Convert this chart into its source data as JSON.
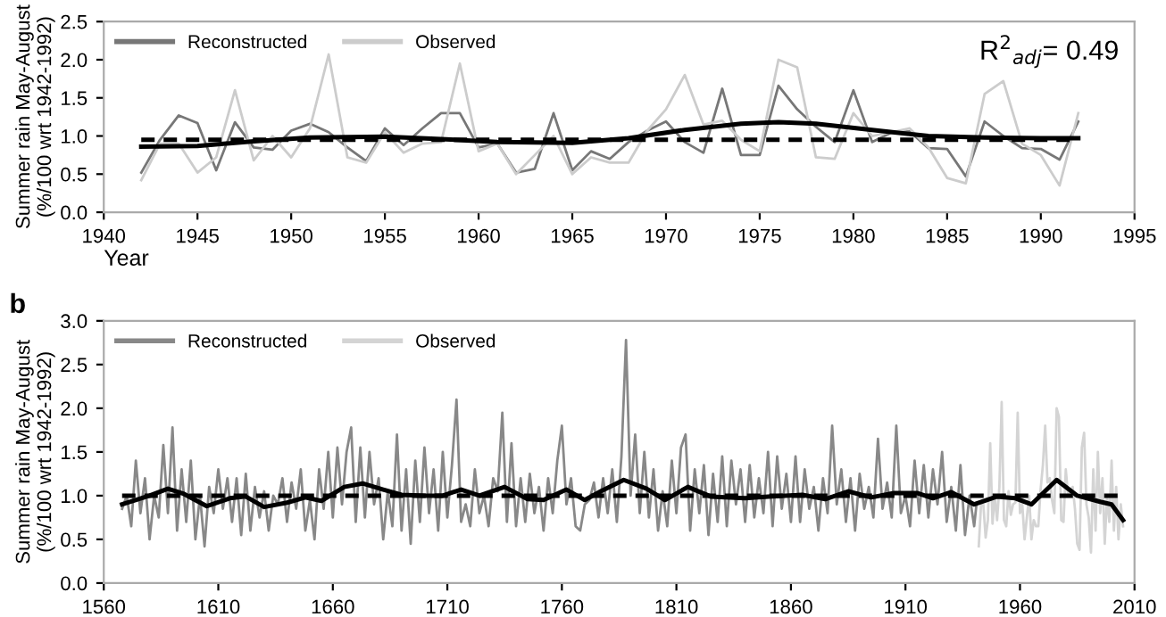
{
  "chart_data": [
    {
      "type": "line",
      "xlabel": "Year",
      "ylabel": "Summer rain May-August\n(%/100 wrt 1942-1992)",
      "xlim": [
        1940,
        1995
      ],
      "xticks": [
        1940,
        1945,
        1950,
        1955,
        1960,
        1965,
        1970,
        1975,
        1980,
        1985,
        1990,
        1995
      ],
      "ylim": [
        0,
        2.5
      ],
      "yticks": [
        {
          "value": 0,
          "label": "0.0"
        },
        0.5,
        {
          "value": 1,
          "label": "1.0"
        },
        1.5,
        {
          "value": 2,
          "label": "2.0"
        },
        2.5
      ],
      "grid": false,
      "legend": "top left",
      "annotations": [
        "R$^{2}$$_{adj}$= 0.49"
      ],
      "series": [
        {
          "name": "Reconstructed",
          "color": "#777777",
          "x": [
            1942,
            1943,
            1944,
            1945,
            1946,
            1947,
            1948,
            1949,
            1950,
            1951,
            1952,
            1953,
            1954,
            1955,
            1956,
            1957,
            1958,
            1959,
            1960,
            1961,
            1962,
            1963,
            1964,
            1965,
            1966,
            1967,
            1968,
            1969,
            1970,
            1971,
            1972,
            1973,
            1974,
            1975,
            1976,
            1977,
            1978,
            1979,
            1980,
            1981,
            1982,
            1983,
            1984,
            1985,
            1986,
            1987,
            1988,
            1989,
            1990,
            1991,
            1992
          ],
          "values": [
            0.52,
            0.95,
            1.27,
            1.17,
            0.55,
            1.18,
            0.85,
            0.82,
            1.07,
            1.16,
            1.05,
            0.85,
            0.67,
            1.1,
            0.88,
            1.1,
            1.3,
            1.3,
            0.85,
            0.9,
            0.52,
            0.57,
            1.3,
            0.55,
            0.8,
            0.7,
            0.92,
            1.07,
            1.19,
            0.92,
            0.78,
            1.62,
            0.75,
            0.75,
            1.66,
            1.35,
            1.12,
            0.92,
            1.6,
            0.92,
            1.04,
            1.06,
            0.84,
            0.83,
            0.47,
            1.19,
            1.0,
            0.84,
            0.83,
            0.69,
            1.19
          ]
        },
        {
          "name": "Observed",
          "color": "#cccccc",
          "x": [
            1942,
            1943,
            1944,
            1945,
            1946,
            1947,
            1948,
            1949,
            1950,
            1951,
            1952,
            1953,
            1954,
            1955,
            1956,
            1957,
            1958,
            1959,
            1960,
            1961,
            1962,
            1963,
            1964,
            1965,
            1966,
            1967,
            1968,
            1969,
            1970,
            1971,
            1972,
            1973,
            1974,
            1975,
            1976,
            1977,
            1978,
            1979,
            1980,
            1981,
            1982,
            1983,
            1984,
            1985,
            1986,
            1987,
            1988,
            1989,
            1990,
            1991,
            1992
          ],
          "values": [
            0.42,
            0.9,
            0.9,
            0.52,
            0.72,
            1.6,
            0.68,
            1.0,
            0.72,
            1.1,
            2.07,
            0.72,
            0.65,
            1.05,
            0.78,
            0.9,
            0.92,
            1.95,
            0.8,
            0.9,
            0.5,
            0.75,
            1.0,
            0.5,
            0.72,
            0.65,
            0.65,
            1.07,
            1.35,
            1.8,
            1.15,
            1.2,
            0.95,
            0.8,
            2.0,
            1.9,
            0.72,
            0.7,
            1.3,
            1.0,
            1.05,
            1.1,
            0.85,
            0.45,
            0.38,
            1.55,
            1.72,
            0.9,
            0.75,
            0.35,
            1.3
          ]
        },
        {
          "color": "#000000",
          "x": [
            1942,
            1945,
            1948,
            1951,
            1955,
            1958,
            1961,
            1965,
            1968,
            1971,
            1974,
            1976,
            1978,
            1981,
            1984,
            1987,
            1990,
            1992
          ],
          "values": [
            0.86,
            0.87,
            0.93,
            0.98,
            0.99,
            0.96,
            0.92,
            0.91,
            0.97,
            1.08,
            1.16,
            1.18,
            1.16,
            1.08,
            1.0,
            0.98,
            0.97,
            0.97
          ]
        },
        {
          "color": "#000000",
          "line_style": "dashed",
          "x": [
            1942,
            1992
          ],
          "values": [
            0.95,
            0.95
          ]
        }
      ]
    },
    {
      "type": "line",
      "ylabel": "Summer rain May-August\n(%/100 wrt 1942-1992)",
      "xlim": [
        1560,
        2010
      ],
      "xticks": [
        1560,
        1610,
        1660,
        1710,
        1760,
        1810,
        1860,
        1910,
        1960,
        2010
      ],
      "ylim": [
        0,
        3
      ],
      "yticks": [
        {
          "value": 0,
          "label": "0.0"
        },
        0.5,
        {
          "value": 1,
          "label": "1.0"
        },
        1.5,
        {
          "value": 2,
          "label": "2.0"
        },
        2.5,
        {
          "value": 3,
          "label": "3.0"
        }
      ],
      "grid": false,
      "legend": "top left",
      "annotations": [
        "b"
      ],
      "series": [
        {
          "name": "Reconstructed",
          "color": "#888888",
          "x": [
            1568,
            1570,
            1572,
            1574,
            1576,
            1578,
            1580,
            1582,
            1584,
            1586,
            1588,
            1590,
            1592,
            1594,
            1596,
            1598,
            1600,
            1602,
            1604,
            1606,
            1608,
            1610,
            1612,
            1614,
            1616,
            1618,
            1620,
            1622,
            1624,
            1626,
            1628,
            1630,
            1632,
            1634,
            1636,
            1638,
            1640,
            1642,
            1644,
            1646,
            1648,
            1650,
            1652,
            1654,
            1656,
            1658,
            1660,
            1662,
            1664,
            1666,
            1668,
            1670,
            1672,
            1674,
            1676,
            1678,
            1680,
            1682,
            1684,
            1686,
            1688,
            1690,
            1692,
            1694,
            1696,
            1698,
            1700,
            1702,
            1704,
            1706,
            1708,
            1710,
            1712,
            1714,
            1716,
            1718,
            1720,
            1722,
            1724,
            1726,
            1728,
            1730,
            1732,
            1734,
            1736,
            1738,
            1740,
            1742,
            1744,
            1746,
            1748,
            1750,
            1752,
            1754,
            1756,
            1758,
            1760,
            1762,
            1764,
            1766,
            1768,
            1770,
            1772,
            1774,
            1776,
            1778,
            1780,
            1782,
            1784,
            1786,
            1788,
            1790,
            1792,
            1794,
            1796,
            1798,
            1800,
            1802,
            1804,
            1806,
            1808,
            1810,
            1812,
            1814,
            1816,
            1818,
            1820,
            1822,
            1824,
            1826,
            1828,
            1830,
            1832,
            1834,
            1836,
            1838,
            1840,
            1842,
            1844,
            1846,
            1848,
            1850,
            1852,
            1854,
            1856,
            1858,
            1860,
            1862,
            1864,
            1866,
            1868,
            1870,
            1872,
            1874,
            1876,
            1878,
            1880,
            1882,
            1884,
            1886,
            1888,
            1890,
            1892,
            1894,
            1896,
            1898,
            1900,
            1902,
            1904,
            1906,
            1908,
            1910,
            1912,
            1914,
            1916,
            1918,
            1920,
            1922,
            1924,
            1926,
            1928,
            1930,
            1932,
            1934,
            1936,
            1938,
            1940,
            1941
          ],
          "values": [
            0.85,
            1.0,
            0.65,
            1.4,
            0.8,
            1.2,
            0.5,
            1.0,
            0.75,
            1.58,
            0.8,
            1.78,
            0.6,
            1.3,
            0.7,
            1.4,
            0.5,
            1.0,
            0.42,
            1.1,
            0.8,
            1.3,
            0.85,
            1.2,
            0.7,
            1.2,
            0.55,
            1.25,
            0.6,
            1.1,
            0.75,
            1.05,
            0.6,
            1.0,
            0.9,
            1.2,
            0.7,
            1.15,
            0.85,
            1.3,
            0.6,
            0.95,
            0.5,
            1.3,
            0.85,
            1.5,
            0.75,
            1.55,
            0.9,
            1.5,
            1.78,
            0.7,
            1.55,
            0.75,
            1.5,
            0.9,
            1.2,
            0.5,
            1.05,
            0.65,
            1.7,
            0.6,
            1.3,
            0.45,
            1.4,
            0.7,
            1.55,
            0.8,
            1.3,
            0.6,
            1.5,
            0.75,
            1.35,
            2.1,
            0.7,
            0.9,
            0.65,
            1.3,
            0.8,
            1.0,
            0.65,
            1.2,
            1.05,
            1.95,
            0.7,
            1.6,
            0.65,
            1.2,
            0.7,
            1.25,
            0.8,
            1.1,
            0.6,
            1.2,
            0.8,
            1.4,
            1.8,
            0.9,
            1.2,
            0.65,
            0.6,
            0.9,
            0.95,
            1.15,
            0.75,
            1.2,
            0.8,
            1.3,
            0.7,
            1.45,
            2.78,
            1.0,
            1.7,
            0.8,
            1.5,
            0.75,
            1.3,
            0.6,
            1.05,
            0.65,
            1.4,
            0.8,
            1.55,
            1.7,
            0.6,
            1.3,
            0.8,
            1.35,
            0.55,
            1.25,
            0.7,
            1.45,
            0.65,
            1.4,
            0.9,
            1.3,
            0.7,
            1.35,
            0.75,
            1.2,
            0.8,
            1.5,
            0.65,
            1.45,
            0.85,
            1.25,
            0.7,
            1.45,
            0.7,
            1.3,
            0.85,
            1.1,
            0.6,
            1.2,
            0.8,
            1.8,
            0.9,
            1.3,
            0.7,
            1.2,
            0.6,
            1.25,
            0.85,
            1.1,
            0.75,
            1.65,
            0.85,
            1.15,
            0.75,
            1.8,
            0.8,
            1.0,
            0.65,
            1.4,
            0.8,
            1.35,
            0.75,
            1.3,
            0.9,
            1.5,
            0.7,
            1.1,
            0.6,
            1.35,
            0.55,
            1.0,
            0.65,
            0.9
          ]
        },
        {
          "name": "Observed",
          "color": "#d4d4d4",
          "x": [
            1942,
            1943,
            1944,
            1945,
            1946,
            1947,
            1948,
            1949,
            1950,
            1951,
            1952,
            1953,
            1954,
            1955,
            1956,
            1957,
            1958,
            1959,
            1960,
            1961,
            1962,
            1963,
            1964,
            1965,
            1966,
            1967,
            1968,
            1969,
            1970,
            1971,
            1972,
            1973,
            1974,
            1975,
            1976,
            1977,
            1978,
            1979,
            1980,
            1981,
            1982,
            1983,
            1984,
            1985,
            1986,
            1987,
            1988,
            1989,
            1990,
            1991,
            1992,
            1993,
            1994,
            1995,
            1996,
            1997,
            1998,
            1999,
            2000,
            2001,
            2002,
            2003,
            2004,
            2005
          ],
          "values": [
            0.42,
            0.9,
            0.9,
            0.52,
            0.72,
            1.6,
            0.68,
            1.0,
            0.72,
            1.1,
            2.07,
            0.72,
            0.65,
            1.05,
            0.78,
            0.9,
            0.92,
            1.95,
            0.8,
            0.9,
            0.5,
            0.75,
            1.0,
            0.5,
            0.72,
            0.65,
            0.65,
            1.07,
            1.35,
            1.8,
            1.15,
            1.2,
            0.95,
            0.8,
            2.0,
            1.9,
            0.72,
            0.7,
            1.3,
            1.0,
            1.05,
            1.1,
            0.85,
            0.45,
            0.38,
            1.55,
            1.72,
            0.9,
            0.75,
            0.35,
            1.3,
            0.6,
            1.5,
            0.8,
            1.2,
            0.45,
            1.0,
            0.7,
            1.4,
            0.6,
            1.1,
            0.5,
            0.9,
            0.65
          ]
        },
        {
          "color": "#000000",
          "x": [
            1568,
            1580,
            1588,
            1595,
            1605,
            1615,
            1622,
            1630,
            1640,
            1648,
            1655,
            1665,
            1673,
            1682,
            1690,
            1700,
            1708,
            1716,
            1724,
            1735,
            1745,
            1752,
            1762,
            1770,
            1777,
            1787,
            1797,
            1805,
            1815,
            1825,
            1840,
            1850,
            1865,
            1875,
            1885,
            1895,
            1905,
            1915,
            1922,
            1930,
            1940,
            1950,
            1958,
            1965,
            1976,
            1985,
            1995,
            2000,
            2005
          ],
          "values": [
            0.9,
            1.0,
            1.08,
            1.02,
            0.88,
            0.97,
            0.99,
            0.87,
            0.92,
            0.98,
            0.94,
            1.1,
            1.14,
            1.07,
            1.01,
            1.0,
            1.0,
            1.07,
            1.0,
            1.1,
            0.96,
            0.95,
            1.07,
            0.95,
            1.05,
            1.18,
            1.08,
            0.95,
            1.1,
            0.99,
            0.97,
            0.99,
            1.01,
            0.96,
            1.05,
            0.98,
            1.03,
            1.03,
            0.97,
            1.04,
            0.9,
            0.99,
            0.97,
            0.9,
            1.18,
            1.0,
            0.93,
            0.9,
            0.72
          ]
        },
        {
          "color": "#000000",
          "line_style": "dashed",
          "x": [
            1568,
            2005
          ],
          "values": [
            1.0,
            1.0
          ]
        }
      ]
    }
  ]
}
